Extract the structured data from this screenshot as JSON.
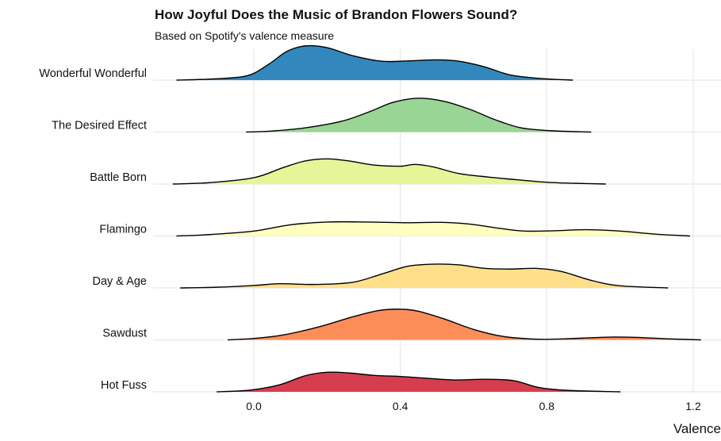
{
  "chart_data": {
    "type": "ridgeline",
    "title": "How Joyful Does the Music of Brandon Flowers Sound?",
    "subtitle": "Based on Spotify's valence measure",
    "xlabel": "Valence",
    "ylabel": "",
    "xlim": [
      -0.28,
      1.28
    ],
    "x_ticks": [
      "0.0",
      "0.4",
      "0.8",
      "1.2"
    ],
    "x_tick_values": [
      0.0,
      0.4,
      0.8,
      1.2
    ],
    "grid": true,
    "legend": "none",
    "categories": [
      "Wonderful Wonderful",
      "The Desired Effect",
      "Battle Born",
      "Flamingo",
      "Day & Age",
      "Sawdust",
      "Hot Fuss"
    ],
    "series": [
      {
        "category": "Wonderful Wonderful",
        "color": "#3288bd",
        "points": [
          [
            -0.21,
            0.0
          ],
          [
            -0.12,
            0.03
          ],
          [
            -0.02,
            0.12
          ],
          [
            0.04,
            0.45
          ],
          [
            0.09,
            0.82
          ],
          [
            0.14,
            0.98
          ],
          [
            0.2,
            0.93
          ],
          [
            0.27,
            0.7
          ],
          [
            0.35,
            0.54
          ],
          [
            0.42,
            0.55
          ],
          [
            0.5,
            0.58
          ],
          [
            0.56,
            0.54
          ],
          [
            0.63,
            0.38
          ],
          [
            0.7,
            0.15
          ],
          [
            0.78,
            0.05
          ],
          [
            0.87,
            0.0
          ]
        ]
      },
      {
        "category": "The Desired Effect",
        "color": "#99d594",
        "points": [
          [
            -0.02,
            0.0
          ],
          [
            0.05,
            0.03
          ],
          [
            0.14,
            0.12
          ],
          [
            0.24,
            0.31
          ],
          [
            0.32,
            0.6
          ],
          [
            0.38,
            0.85
          ],
          [
            0.45,
            0.97
          ],
          [
            0.52,
            0.88
          ],
          [
            0.59,
            0.65
          ],
          [
            0.66,
            0.35
          ],
          [
            0.73,
            0.12
          ],
          [
            0.81,
            0.04
          ],
          [
            0.92,
            0.0
          ]
        ]
      },
      {
        "category": "Battle Born",
        "color": "#e6f598",
        "points": [
          [
            -0.22,
            0.0
          ],
          [
            -0.12,
            0.04
          ],
          [
            0.0,
            0.18
          ],
          [
            0.08,
            0.47
          ],
          [
            0.14,
            0.66
          ],
          [
            0.2,
            0.72
          ],
          [
            0.26,
            0.66
          ],
          [
            0.33,
            0.54
          ],
          [
            0.4,
            0.51
          ],
          [
            0.44,
            0.56
          ],
          [
            0.49,
            0.49
          ],
          [
            0.56,
            0.3
          ],
          [
            0.64,
            0.2
          ],
          [
            0.72,
            0.12
          ],
          [
            0.8,
            0.05
          ],
          [
            0.88,
            0.02
          ],
          [
            0.96,
            0.0
          ]
        ]
      },
      {
        "category": "Flamingo",
        "color": "#ffffbf",
        "points": [
          [
            -0.21,
            0.0
          ],
          [
            -0.12,
            0.04
          ],
          [
            0.0,
            0.14
          ],
          [
            0.1,
            0.32
          ],
          [
            0.2,
            0.4
          ],
          [
            0.31,
            0.4
          ],
          [
            0.41,
            0.38
          ],
          [
            0.51,
            0.39
          ],
          [
            0.59,
            0.34
          ],
          [
            0.67,
            0.22
          ],
          [
            0.74,
            0.14
          ],
          [
            0.82,
            0.15
          ],
          [
            0.91,
            0.18
          ],
          [
            1.0,
            0.14
          ],
          [
            1.1,
            0.05
          ],
          [
            1.19,
            0.0
          ]
        ]
      },
      {
        "category": "Day & Age",
        "color": "#fee08b",
        "points": [
          [
            -0.2,
            0.0
          ],
          [
            -0.1,
            0.02
          ],
          [
            0.0,
            0.07
          ],
          [
            0.07,
            0.12
          ],
          [
            0.17,
            0.1
          ],
          [
            0.27,
            0.16
          ],
          [
            0.35,
            0.4
          ],
          [
            0.42,
            0.62
          ],
          [
            0.49,
            0.68
          ],
          [
            0.56,
            0.66
          ],
          [
            0.63,
            0.56
          ],
          [
            0.7,
            0.54
          ],
          [
            0.77,
            0.56
          ],
          [
            0.84,
            0.47
          ],
          [
            0.92,
            0.22
          ],
          [
            1.0,
            0.06
          ],
          [
            1.13,
            0.0
          ]
        ]
      },
      {
        "category": "Sawdust",
        "color": "#fc8d59",
        "points": [
          [
            -0.07,
            0.0
          ],
          [
            0.0,
            0.04
          ],
          [
            0.08,
            0.14
          ],
          [
            0.18,
            0.38
          ],
          [
            0.27,
            0.66
          ],
          [
            0.34,
            0.84
          ],
          [
            0.4,
            0.88
          ],
          [
            0.45,
            0.82
          ],
          [
            0.52,
            0.6
          ],
          [
            0.6,
            0.3
          ],
          [
            0.68,
            0.1
          ],
          [
            0.77,
            0.02
          ],
          [
            0.85,
            0.03
          ],
          [
            0.92,
            0.06
          ],
          [
            0.98,
            0.08
          ],
          [
            1.05,
            0.07
          ],
          [
            1.13,
            0.03
          ],
          [
            1.22,
            0.0
          ]
        ]
      },
      {
        "category": "Hot Fuss",
        "color": "#d53e4f",
        "points": [
          [
            -0.1,
            0.0
          ],
          [
            -0.01,
            0.05
          ],
          [
            0.07,
            0.2
          ],
          [
            0.14,
            0.46
          ],
          [
            0.2,
            0.56
          ],
          [
            0.26,
            0.54
          ],
          [
            0.33,
            0.47
          ],
          [
            0.4,
            0.44
          ],
          [
            0.47,
            0.39
          ],
          [
            0.55,
            0.34
          ],
          [
            0.63,
            0.36
          ],
          [
            0.71,
            0.32
          ],
          [
            0.78,
            0.12
          ],
          [
            0.86,
            0.04
          ],
          [
            1.0,
            0.0
          ]
        ]
      }
    ]
  }
}
